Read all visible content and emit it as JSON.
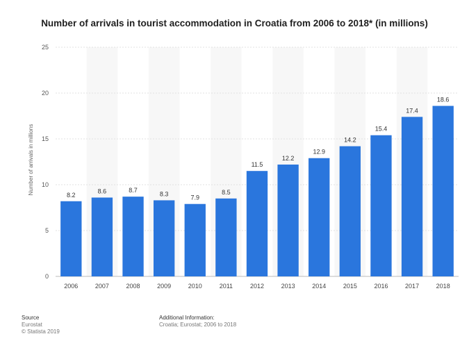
{
  "chart_data": {
    "type": "bar",
    "title": "Number of arrivals in tourist accommodation in Croatia from 2006 to 2018* (in millions)",
    "xlabel": "",
    "ylabel": "Number of arrivals in millions",
    "categories": [
      "2006",
      "2007",
      "2008",
      "2009",
      "2010",
      "2011",
      "2012",
      "2013",
      "2014",
      "2015",
      "2016",
      "2017",
      "2018"
    ],
    "values": [
      8.2,
      8.6,
      8.7,
      8.3,
      7.9,
      8.5,
      11.5,
      12.2,
      12.9,
      14.2,
      15.4,
      17.4,
      18.6
    ],
    "data_labels": [
      "8.2",
      "8.6",
      "8.7",
      "8.3",
      "7.9",
      "8.5",
      "11.5",
      "12.2",
      "12.9",
      "14.2",
      "15.4",
      "17.4",
      "18.6"
    ],
    "yticks": [
      0,
      5,
      10,
      15,
      20,
      25
    ],
    "ylim": [
      0,
      25
    ],
    "grid": true,
    "legend": "none",
    "bar_color": "#2a76dd"
  },
  "footer": {
    "source_heading": "Source",
    "source_name": "Eurostat",
    "copyright": "© Statista 2019",
    "info_heading": "Additional Information:",
    "info_text": "Croatia; Eurostat; 2006 to 2018"
  }
}
